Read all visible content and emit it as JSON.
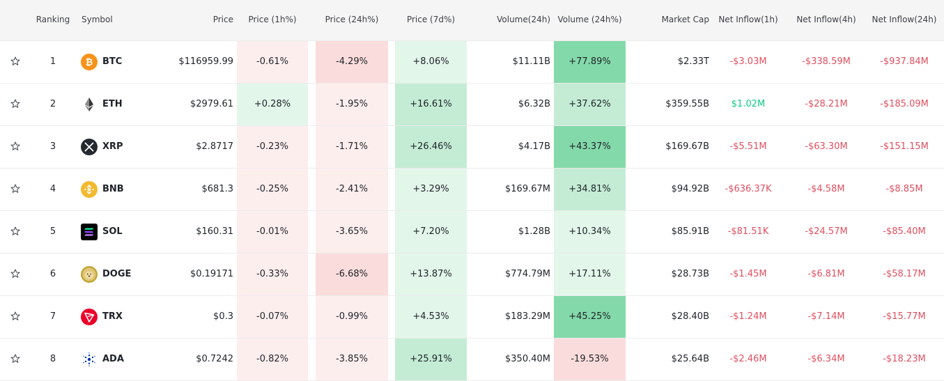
{
  "header": {
    "ranking": "Ranking",
    "symbol": "Symbol",
    "price": "Price",
    "price_1h": "Price (1h%)",
    "price_24h": "Price (24h%)",
    "price_7d": "Price (7d%)",
    "volume_24h": "Volume(24h)",
    "volume_pct": "Volume (24h%)",
    "market_cap": "Market Cap",
    "inflow_1h": "Net Inflow(1h)",
    "inflow_4h": "Net Inflow(4h)",
    "inflow_24h": "Net Inflow(24h)"
  },
  "colors": {
    "red_light": "#fdeeee",
    "red_mid": "#fbdcdc",
    "green_light": "#e3f6ea",
    "green_mid": "#c4ecd5",
    "green_strong": "#84d9aa",
    "negative_text": "#e04f5f",
    "positive_text": "#0ecb81"
  },
  "rows": [
    {
      "rank": "1",
      "symbol": "BTC",
      "icon": "btc-icon",
      "price": "$116959.99",
      "p1h": "-0.61%",
      "p24h": "-4.29%",
      "p7d": "+8.06%",
      "vol": "$11.11B",
      "volpct": "+77.89%",
      "mcap": "$2.33T",
      "in1h": "-$3.03M",
      "in4h": "-$338.59M",
      "in24h": "-$937.84M"
    },
    {
      "rank": "2",
      "symbol": "ETH",
      "icon": "eth-icon",
      "price": "$2979.61",
      "p1h": "+0.28%",
      "p24h": "-1.95%",
      "p7d": "+16.61%",
      "vol": "$6.32B",
      "volpct": "+37.62%",
      "mcap": "$359.55B",
      "in1h": "$1.02M",
      "in4h": "-$28.21M",
      "in24h": "-$185.09M"
    },
    {
      "rank": "3",
      "symbol": "XRP",
      "icon": "xrp-icon",
      "price": "$2.8717",
      "p1h": "-0.23%",
      "p24h": "-1.71%",
      "p7d": "+26.46%",
      "vol": "$4.17B",
      "volpct": "+43.37%",
      "mcap": "$169.67B",
      "in1h": "-$5.51M",
      "in4h": "-$63.30M",
      "in24h": "-$151.15M"
    },
    {
      "rank": "4",
      "symbol": "BNB",
      "icon": "bnb-icon",
      "price": "$681.3",
      "p1h": "-0.25%",
      "p24h": "-2.41%",
      "p7d": "+3.29%",
      "vol": "$169.67M",
      "volpct": "+34.81%",
      "mcap": "$94.92B",
      "in1h": "-$636.37K",
      "in4h": "-$4.58M",
      "in24h": "-$8.85M"
    },
    {
      "rank": "5",
      "symbol": "SOL",
      "icon": "sol-icon",
      "price": "$160.31",
      "p1h": "-0.01%",
      "p24h": "-3.65%",
      "p7d": "+7.20%",
      "vol": "$1.28B",
      "volpct": "+10.34%",
      "mcap": "$85.91B",
      "in1h": "-$81.51K",
      "in4h": "-$24.57M",
      "in24h": "-$85.40M"
    },
    {
      "rank": "6",
      "symbol": "DOGE",
      "icon": "doge-icon",
      "price": "$0.19171",
      "p1h": "-0.33%",
      "p24h": "-6.68%",
      "p7d": "+13.87%",
      "vol": "$774.79M",
      "volpct": "+17.11%",
      "mcap": "$28.73B",
      "in1h": "-$1.45M",
      "in4h": "-$6.81M",
      "in24h": "-$58.17M"
    },
    {
      "rank": "7",
      "symbol": "TRX",
      "icon": "trx-icon",
      "price": "$0.3",
      "p1h": "-0.07%",
      "p24h": "-0.99%",
      "p7d": "+4.53%",
      "vol": "$183.29M",
      "volpct": "+45.25%",
      "mcap": "$28.40B",
      "in1h": "-$1.24M",
      "in4h": "-$7.14M",
      "in24h": "-$15.77M"
    },
    {
      "rank": "8",
      "symbol": "ADA",
      "icon": "ada-icon",
      "price": "$0.7242",
      "p1h": "-0.82%",
      "p24h": "-3.85%",
      "p7d": "+25.91%",
      "vol": "$350.40M",
      "volpct": "-19.53%",
      "mcap": "$25.64B",
      "in1h": "-$2.46M",
      "in4h": "-$6.34M",
      "in24h": "-$18.23M"
    }
  ]
}
